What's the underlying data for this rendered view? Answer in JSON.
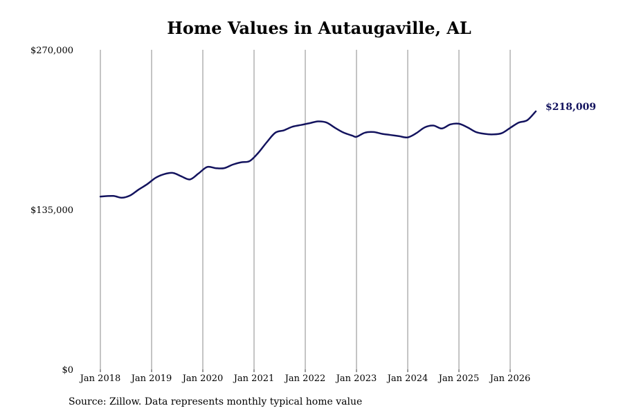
{
  "chart_data": {
    "type": "line",
    "title": "Home Values in Autaugaville, AL",
    "source": "Source: Zillow. Data represents monthly typical home value",
    "ylim": [
      0,
      270000
    ],
    "y_ticks": [
      "$270,000",
      "$135,000",
      "$0"
    ],
    "y_tick_values": [
      270000,
      135000,
      0
    ],
    "x_ticks": [
      "Jan 2018",
      "Jan 2019",
      "Jan 2020",
      "Jan 2021",
      "Jan 2022",
      "Jan 2023",
      "Jan 2024",
      "Jan 2025",
      "Jan 2026"
    ],
    "x_range": [
      "2018-01",
      "2026-07"
    ],
    "vertical_grid": true,
    "line_color": "#13135e",
    "last_value_label": "$218,009",
    "series": [
      {
        "x": [
          "2018-01",
          "2018-04",
          "2018-06",
          "2018-08",
          "2018-10",
          "2018-12",
          "2019-02",
          "2019-04",
          "2019-06",
          "2019-08",
          "2019-10",
          "2019-12",
          "2020-02",
          "2020-04",
          "2020-06",
          "2020-08",
          "2020-10",
          "2020-12",
          "2021-02",
          "2021-04",
          "2021-06",
          "2021-08",
          "2021-10",
          "2021-12",
          "2022-02",
          "2022-04",
          "2022-06",
          "2022-08",
          "2022-10",
          "2022-12",
          "2023-01",
          "2023-03",
          "2023-05",
          "2023-07",
          "2023-09",
          "2023-11",
          "2024-01",
          "2024-03",
          "2024-05",
          "2024-07",
          "2024-09",
          "2024-11",
          "2025-01",
          "2025-03",
          "2025-05",
          "2025-07",
          "2025-09",
          "2025-11",
          "2026-01",
          "2026-03",
          "2026-05",
          "2026-07"
        ],
        "values": [
          146000,
          146500,
          145000,
          147000,
          152000,
          156500,
          162000,
          165000,
          166000,
          163000,
          160500,
          165500,
          171000,
          170000,
          170000,
          173000,
          175000,
          176000,
          183000,
          192000,
          200000,
          202000,
          205000,
          206500,
          208000,
          209500,
          208500,
          204000,
          200000,
          197500,
          196500,
          200000,
          200500,
          199000,
          198000,
          197000,
          196000,
          199500,
          204500,
          206000,
          203500,
          207000,
          207500,
          204500,
          200500,
          199000,
          198500,
          199500,
          204000,
          208500,
          210500,
          218009
        ]
      }
    ]
  }
}
